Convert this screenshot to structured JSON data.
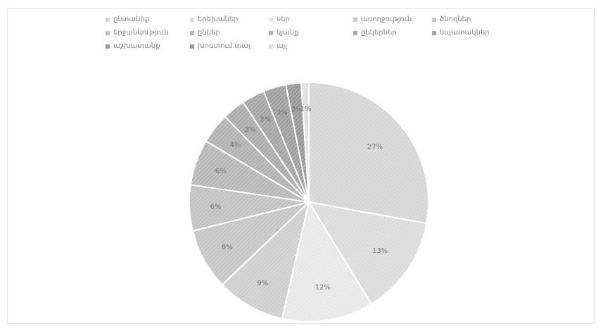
{
  "chart_data": {
    "type": "pie",
    "title": "",
    "legend_position": "top",
    "slices": [
      {
        "label": "ընտանիք",
        "value": 27,
        "display": "27%",
        "color": "#d6d6d6"
      },
      {
        "label": "երեխաներ",
        "value": 13,
        "display": "13%",
        "color": "#dcdcdc"
      },
      {
        "label": "սեր",
        "value": 12,
        "display": "12%",
        "color": "#e8e8e8"
      },
      {
        "label": "առողջություն",
        "value": 9,
        "display": "9%",
        "color": "#cfcfcf"
      },
      {
        "label": "ծնողներ",
        "value": 8,
        "display": "8%",
        "color": "#c6c6c6"
      },
      {
        "label": "երջանկություն",
        "value": 6,
        "display": "6%",
        "color": "#c2c2c2"
      },
      {
        "label": "ընկեր",
        "value": 6,
        "display": "6%",
        "color": "#b8b8b8"
      },
      {
        "label": "կյանք",
        "value": 4,
        "display": "4%",
        "color": "#b2b2b2"
      },
      {
        "label": "ընկերներ",
        "value": 3,
        "display": "3%",
        "color": "#acacac"
      },
      {
        "label": "նպատակներ",
        "value": 3,
        "display": "3%",
        "color": "#a6a6a6"
      },
      {
        "label": "աշխատանք",
        "value": 3,
        "display": "3%",
        "color": "#a0a0a0"
      },
      {
        "label": "խոստում տալ",
        "value": 2,
        "display": "2%",
        "color": "#9a9a9a"
      },
      {
        "label": "այլ",
        "value": 1,
        "display": "1%",
        "color": "#e0e0e0"
      }
    ]
  }
}
